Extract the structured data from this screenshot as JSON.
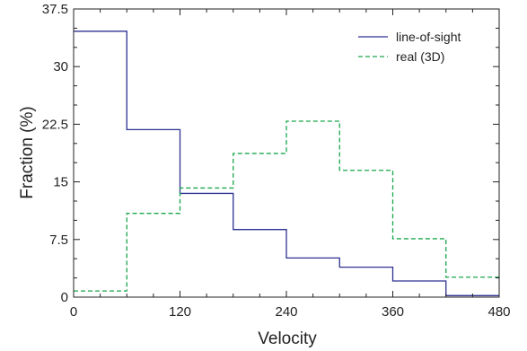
{
  "chart_data": {
    "type": "line",
    "step": true,
    "xlabel": "Velocity",
    "ylabel": "Fraction (%)",
    "xlim": [
      0,
      480
    ],
    "ylim": [
      0,
      37.5
    ],
    "xticks": [
      0,
      120,
      240,
      360,
      480
    ],
    "xtick_labels": [
      "0",
      "120",
      "240",
      "360",
      "480"
    ],
    "yticks": [
      0,
      7.5,
      15,
      22.5,
      30,
      37.5
    ],
    "ytick_labels": [
      "0",
      "7.5",
      "15",
      "22.5",
      "30",
      "37.5"
    ],
    "bin_edges": [
      0,
      60,
      120,
      180,
      240,
      300,
      360,
      420,
      480
    ],
    "grid": false,
    "legend_position": "top-right",
    "series": [
      {
        "name": "line-of-sight",
        "style": "solid",
        "color": "#2e3192",
        "values": [
          34.6,
          21.8,
          13.5,
          8.8,
          5.1,
          3.9,
          2.1,
          0.2
        ]
      },
      {
        "name": "real (3D)",
        "style": "dashed",
        "color": "#1aa64b",
        "values": [
          0.8,
          10.9,
          14.2,
          18.7,
          22.9,
          16.5,
          7.6,
          2.6
        ]
      }
    ]
  }
}
